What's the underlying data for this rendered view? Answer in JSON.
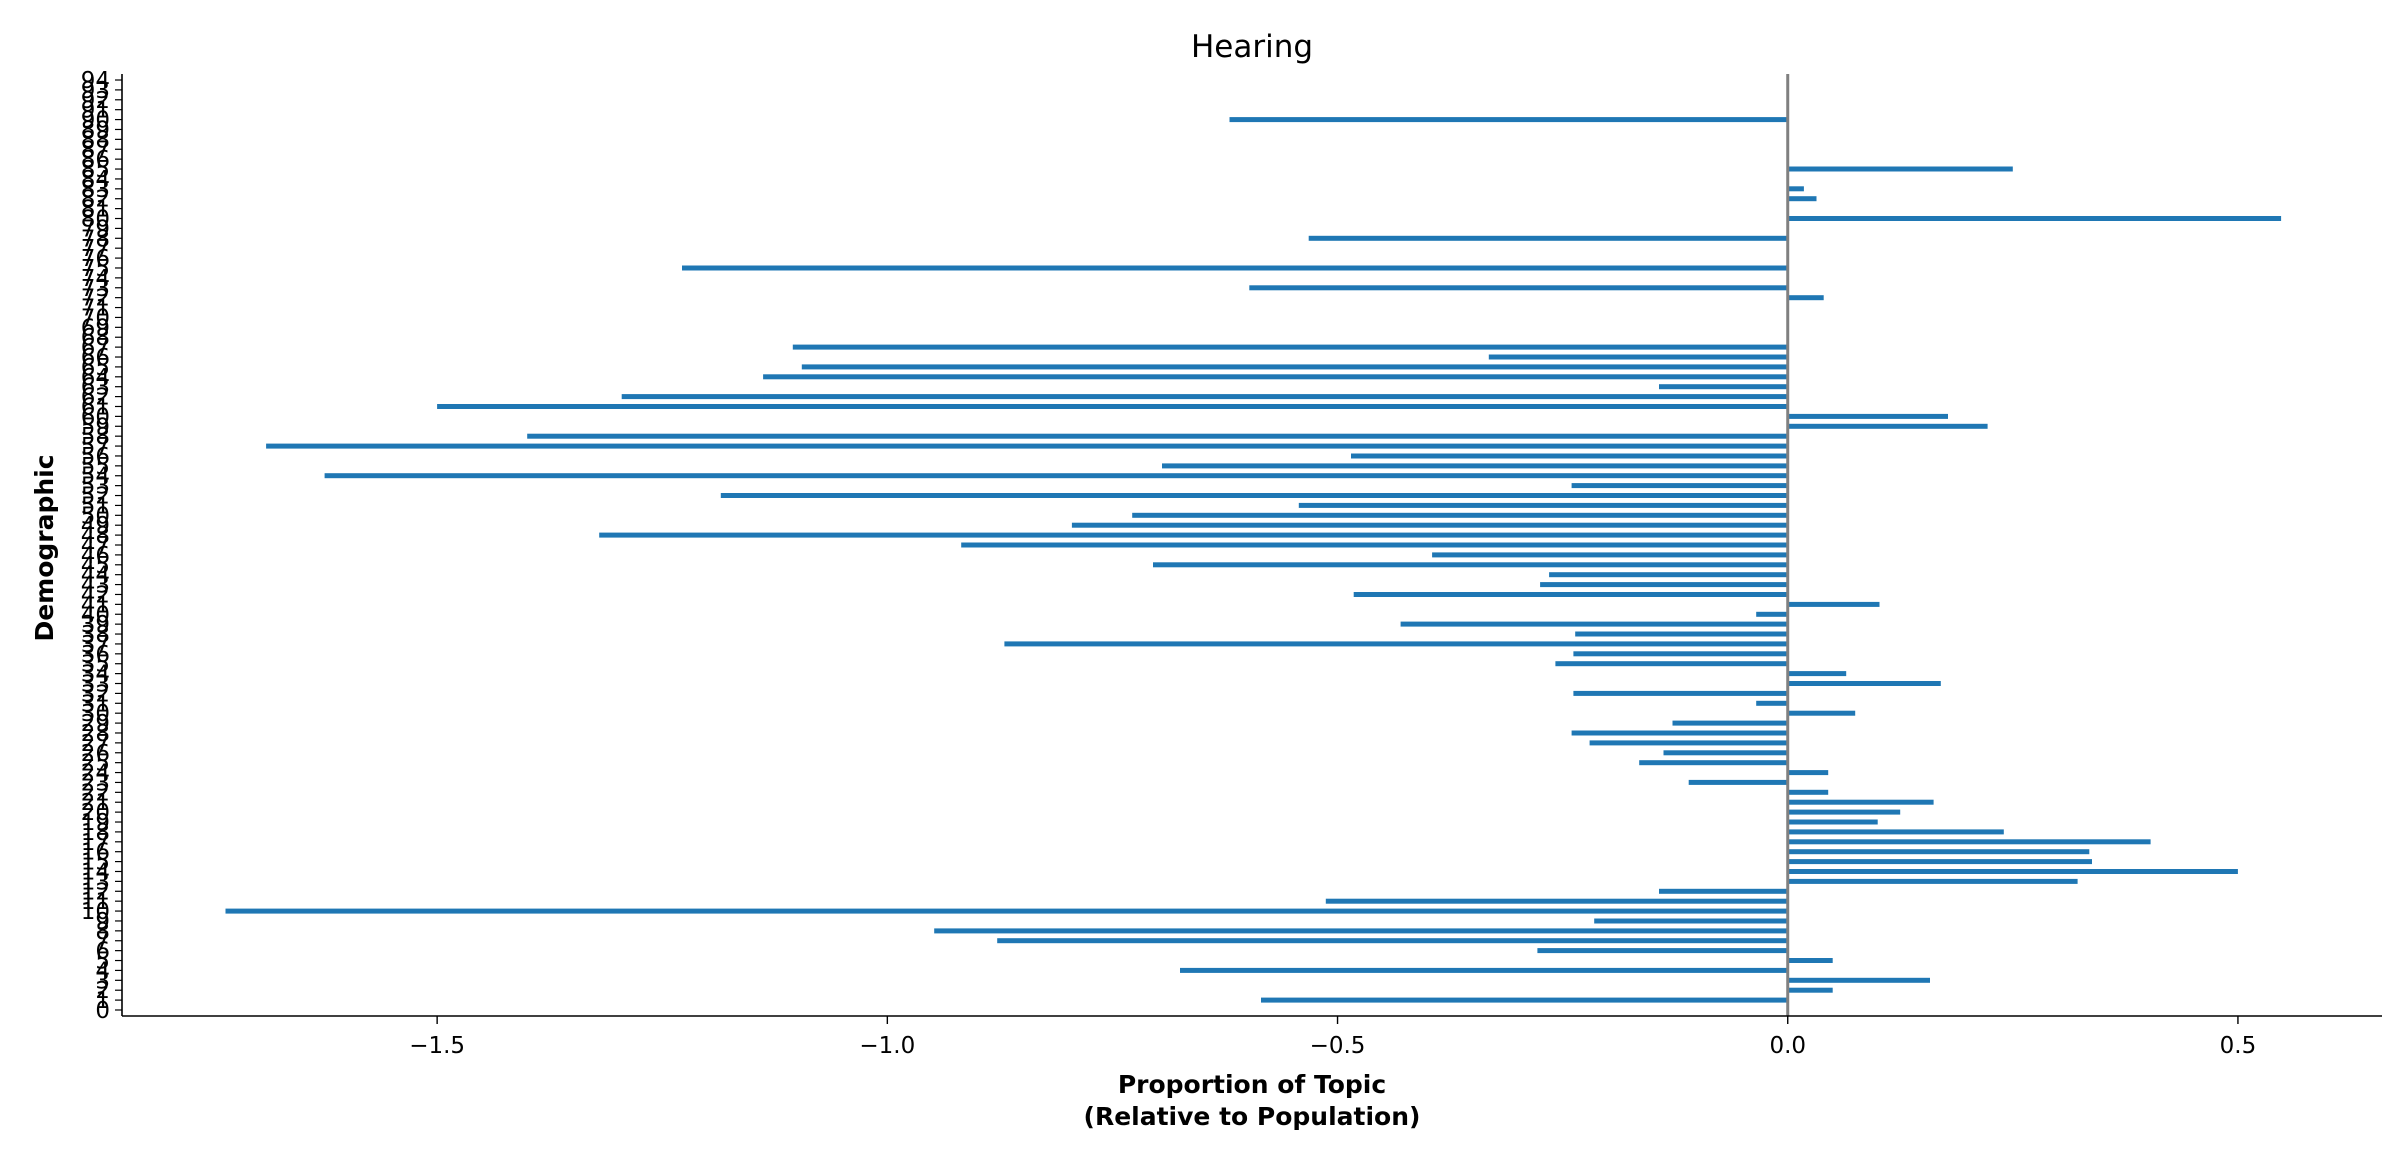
{
  "chart_data": {
    "type": "bar",
    "orientation": "horizontal",
    "title": "Hearing",
    "xlabel_line1": "Proportion of Topic",
    "xlabel_line2": "(Relative to Population)",
    "ylabel": "Demographic",
    "xlim": [
      -1.85,
      0.66
    ],
    "ylim": [
      0,
      94
    ],
    "x_ticks": [
      -1.5,
      -1.0,
      -0.5,
      0.0,
      0.5
    ],
    "x_tick_labels": [
      "−1.5",
      "−1.0",
      "−0.5",
      "0.0",
      "0.5"
    ],
    "grid": false,
    "bar_color": "#1f77b4",
    "zero_line_color": "#808080",
    "categories": [
      0,
      1,
      2,
      3,
      4,
      5,
      6,
      7,
      8,
      9,
      10,
      11,
      12,
      13,
      14,
      15,
      16,
      17,
      18,
      19,
      20,
      21,
      22,
      23,
      24,
      25,
      26,
      27,
      28,
      29,
      30,
      31,
      32,
      33,
      34,
      35,
      36,
      37,
      38,
      39,
      40,
      41,
      42,
      43,
      44,
      45,
      46,
      47,
      48,
      49,
      50,
      51,
      52,
      53,
      54,
      55,
      56,
      57,
      58,
      59,
      60,
      61,
      62,
      63,
      64,
      65,
      66,
      67,
      68,
      69,
      70,
      71,
      72,
      73,
      74,
      75,
      76,
      77,
      78,
      79,
      80,
      81,
      82,
      83,
      84,
      85,
      86,
      87,
      88,
      89,
      90,
      91,
      92,
      93,
      94
    ],
    "values": [
      0,
      -0.585,
      0.05,
      0.158,
      -0.675,
      0.05,
      -0.278,
      -0.878,
      -0.948,
      -0.215,
      -1.735,
      -0.513,
      -0.143,
      0.322,
      0.5,
      0.338,
      0.335,
      0.403,
      0.24,
      0.1,
      0.125,
      0.162,
      0.045,
      -0.11,
      0.045,
      -0.165,
      -0.138,
      -0.22,
      -0.24,
      -0.128,
      0.075,
      -0.035,
      -0.238,
      0.17,
      0.065,
      -0.258,
      -0.238,
      -0.87,
      -0.236,
      -0.43,
      -0.035,
      0.102,
      -0.482,
      -0.275,
      -0.265,
      -0.705,
      -0.395,
      -0.918,
      -1.32,
      -0.795,
      -0.728,
      -0.543,
      -1.185,
      -0.24,
      -1.625,
      -0.695,
      -0.485,
      -1.69,
      -1.4,
      0.222,
      0.178,
      -1.5,
      -1.295,
      -0.143,
      -1.138,
      -1.095,
      -0.332,
      -1.105,
      0,
      0,
      0,
      0,
      0.04,
      -0.598,
      0,
      -1.228,
      0,
      0,
      -0.532,
      0,
      0.548,
      0,
      0.032,
      0.018,
      0,
      0.25,
      0,
      0,
      0,
      0,
      -0.62,
      0,
      0,
      0,
      0
    ]
  }
}
